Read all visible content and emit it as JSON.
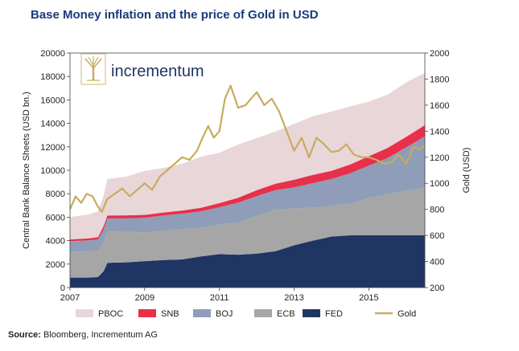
{
  "header": {
    "title": "Base Money inflation and the price of Gold in USD"
  },
  "logo": {
    "text": "incrementum"
  },
  "footer": {
    "source_label": "Source:",
    "source_text": "Bloomberg, Incrementum AG"
  },
  "colors": {
    "title": "#1a3a7a",
    "pboc": "#e9d6d9",
    "snb": "#e8304a",
    "boj": "#8f9db8",
    "ecb": "#a6a6a6",
    "fed": "#1f3563",
    "gold": "#c8ab5d"
  },
  "chart_data": {
    "type": "area",
    "stacked": true,
    "title": "Base Money inflation and the price of Gold in USD",
    "ylabel": "Central Bank Balance Sheets (USD bn.)",
    "y2label": "Gold (USD)",
    "ylim": [
      0,
      20000
    ],
    "y2lim": [
      200,
      2000
    ],
    "xlim": [
      2007,
      2016.5
    ],
    "yticks": [
      "0",
      "2000",
      "4000",
      "6000",
      "8000",
      "10000",
      "12000",
      "14000",
      "16000",
      "18000",
      "20000"
    ],
    "y2ticks": [
      "200",
      "400",
      "600",
      "800",
      "1000",
      "1200",
      "1400",
      "1600",
      "1800",
      "2000"
    ],
    "xticks": [
      "2007",
      "2009",
      "2011",
      "2013",
      "2015"
    ],
    "legend": [
      "PBOC",
      "SNB",
      "BOJ",
      "ECB",
      "FED",
      "Gold"
    ],
    "x": [
      2007.0,
      2007.5,
      2007.75,
      2007.9,
      2008.0,
      2008.5,
      2009.0,
      2009.5,
      2010.0,
      2010.5,
      2011.0,
      2011.5,
      2012.0,
      2012.5,
      2013.0,
      2013.5,
      2014.0,
      2014.5,
      2015.0,
      2015.5,
      2016.0,
      2016.5
    ],
    "series": [
      {
        "name": "FED",
        "values": [
          850,
          850,
          900,
          1400,
          2100,
          2150,
          2250,
          2350,
          2400,
          2650,
          2850,
          2800,
          2900,
          3100,
          3600,
          4000,
          4350,
          4450,
          4450,
          4450,
          4450,
          4450
        ]
      },
      {
        "name": "ECB",
        "values": [
          2200,
          2250,
          2250,
          2500,
          2700,
          2600,
          2450,
          2500,
          2550,
          2450,
          2500,
          2750,
          3200,
          3550,
          3150,
          2800,
          2600,
          2700,
          3200,
          3500,
          3800,
          4050
        ]
      },
      {
        "name": "BOJ",
        "values": [
          900,
          920,
          950,
          1050,
          1100,
          1150,
          1250,
          1300,
          1350,
          1400,
          1500,
          1700,
          1700,
          1650,
          1800,
          2100,
          2300,
          2600,
          2750,
          3100,
          3700,
          4400
        ]
      },
      {
        "name": "SNB",
        "values": [
          150,
          170,
          200,
          300,
          250,
          260,
          250,
          250,
          270,
          300,
          350,
          400,
          500,
          550,
          650,
          700,
          700,
          750,
          800,
          850,
          900,
          950
        ]
      },
      {
        "name": "PBOC",
        "values": [
          1900,
          2050,
          2200,
          2600,
          3100,
          3300,
          3750,
          3800,
          4000,
          4350,
          4300,
          4550,
          4450,
          4450,
          4750,
          5000,
          5050,
          4950,
          4650,
          4550,
          4650,
          4450
        ]
      }
    ],
    "gold": {
      "name": "Gold",
      "x": [
        2007.0,
        2007.15,
        2007.3,
        2007.45,
        2007.6,
        2007.75,
        2007.85,
        2008.0,
        2008.2,
        2008.4,
        2008.6,
        2008.8,
        2009.0,
        2009.2,
        2009.4,
        2009.6,
        2009.8,
        2010.0,
        2010.2,
        2010.4,
        2010.55,
        2010.7,
        2010.85,
        2011.0,
        2011.15,
        2011.3,
        2011.5,
        2011.7,
        2011.85,
        2012.0,
        2012.2,
        2012.4,
        2012.6,
        2012.8,
        2013.0,
        2013.2,
        2013.4,
        2013.6,
        2013.8,
        2014.0,
        2014.2,
        2014.4,
        2014.6,
        2014.8,
        2015.0,
        2015.2,
        2015.4,
        2015.6,
        2015.8,
        2016.0,
        2016.2,
        2016.35,
        2016.5
      ],
      "values": [
        800,
        900,
        850,
        920,
        900,
        820,
        780,
        880,
        920,
        960,
        900,
        950,
        1000,
        950,
        1050,
        1100,
        1150,
        1200,
        1180,
        1250,
        1350,
        1440,
        1350,
        1400,
        1650,
        1750,
        1580,
        1600,
        1650,
        1700,
        1600,
        1650,
        1550,
        1400,
        1250,
        1350,
        1200,
        1350,
        1300,
        1240,
        1250,
        1300,
        1220,
        1200,
        1200,
        1180,
        1150,
        1160,
        1220,
        1150,
        1280,
        1260,
        1290
      ]
    }
  }
}
